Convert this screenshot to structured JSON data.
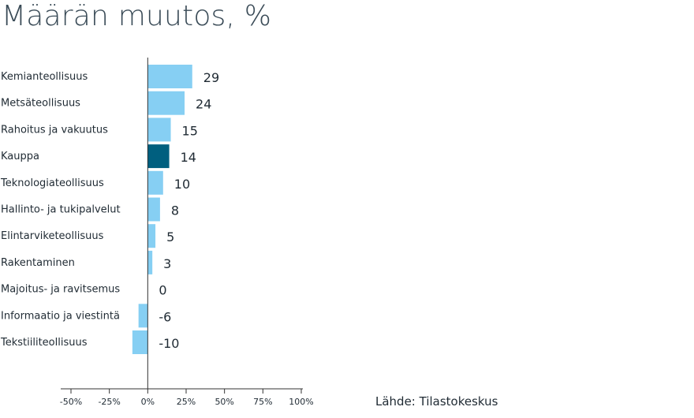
{
  "source": "Lähde: Tilastokeskus",
  "colors": {
    "bar": "#86cff3",
    "highlight": "#005f7f",
    "axis": "#333333"
  },
  "chart_data": {
    "type": "bar",
    "orientation": "horizontal",
    "title": "Määrän muutos, %",
    "categories": [
      "Kemianteollisuus",
      "Metsäteollisuus",
      "Rahoitus ja vakuutus",
      "Kauppa",
      "Teknologiateollisuus",
      "Hallinto- ja tukipalvelut",
      "Elintarviketeollisuus",
      "Rakentaminen",
      "Majoitus- ja ravitsemus",
      "Informaatio ja viestintä",
      "Tekstiiliteollisuus"
    ],
    "values": [
      29,
      24,
      15,
      14,
      10,
      8,
      5,
      3,
      0,
      -6,
      -10
    ],
    "highlight": "Kauppa",
    "xlim": [
      -50,
      100
    ],
    "xticks": [
      -50,
      -25,
      0,
      25,
      50,
      75,
      100
    ],
    "xtick_labels": [
      "-50%",
      "-25%",
      "0%",
      "25%",
      "50%",
      "75%",
      "100%"
    ]
  }
}
